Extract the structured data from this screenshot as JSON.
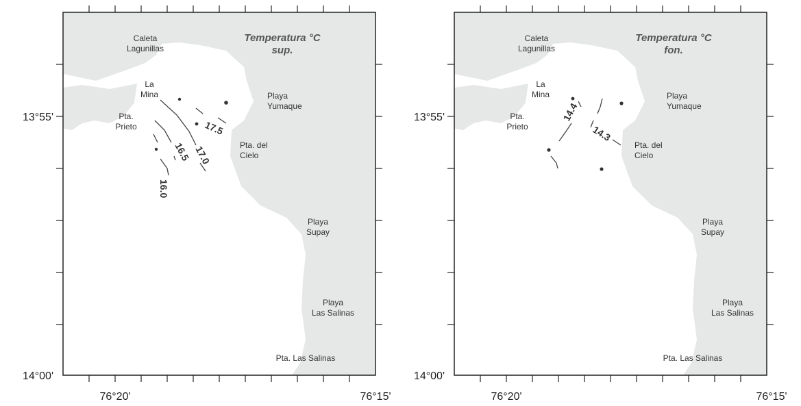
{
  "panels": [
    {
      "title_line1": "Temperatura °C",
      "title_line2": "sup.",
      "lat_labels": [
        "13°55'",
        "14°00'"
      ],
      "lon_labels": [
        "76°20'",
        "76°15'"
      ],
      "places": [
        {
          "line1": "Caleta",
          "line2": "Lagunillas"
        },
        {
          "line1": "La",
          "line2": "Mina"
        },
        {
          "line1": "Pta.",
          "line2": "Prieto"
        },
        {
          "line1": "Playa",
          "line2": "Yumaque"
        },
        {
          "line1": "Pta. del",
          "line2": "Cielo"
        },
        {
          "line1": "Playa",
          "line2": "Supay"
        },
        {
          "line1": "Playa",
          "line2": "Las Salinas"
        },
        {
          "line1": "Pta. Las Salinas",
          "line2": ""
        }
      ],
      "isotherms": [
        "17.5",
        "17.0",
        "16.5",
        "16.0"
      ]
    },
    {
      "title_line1": "Temperatura °C",
      "title_line2": "fon.",
      "lat_labels": [
        "13°55'",
        "14°00'"
      ],
      "lon_labels": [
        "76°20'",
        "76°15'"
      ],
      "places": [
        {
          "line1": "Caleta",
          "line2": "Lagunillas"
        },
        {
          "line1": "La",
          "line2": "Mina"
        },
        {
          "line1": "Pta.",
          "line2": "Prieto"
        },
        {
          "line1": "Playa",
          "line2": "Yumaque"
        },
        {
          "line1": "Pta. del",
          "line2": "Cielo"
        },
        {
          "line1": "Playa",
          "line2": "Supay"
        },
        {
          "line1": "Playa",
          "line2": "Las Salinas"
        },
        {
          "line1": "Pta. Las Salinas",
          "line2": ""
        }
      ],
      "isotherms": [
        "14.4",
        "14.3"
      ]
    }
  ],
  "colors": {
    "land": "#e6e8e8",
    "sea": "#ffffff",
    "contour": "#444444",
    "axis": "#222222"
  }
}
